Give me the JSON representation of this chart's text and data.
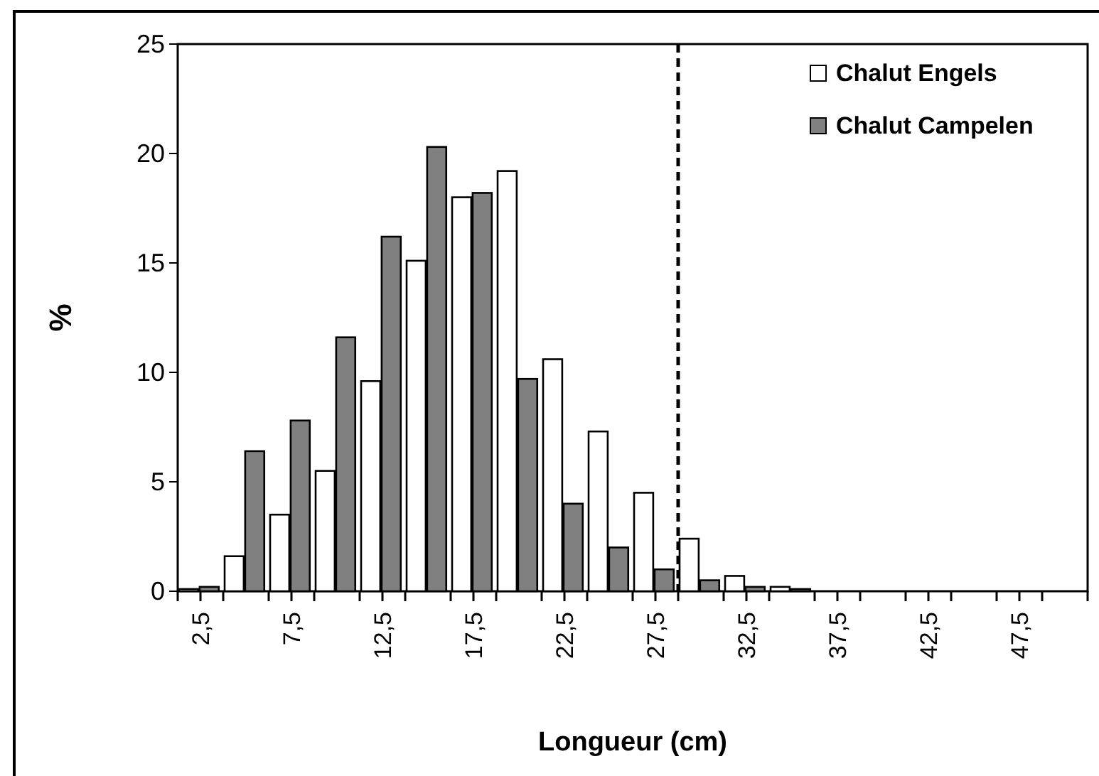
{
  "chart_data": {
    "type": "bar",
    "xlabel": "Longueur (cm)",
    "ylabel": "%",
    "x": [
      2.5,
      5,
      7.5,
      10,
      12.5,
      15,
      17.5,
      20,
      22.5,
      25,
      27.5,
      30,
      32.5,
      35,
      37.5,
      40,
      42.5,
      45,
      47.5,
      50
    ],
    "xlim": [
      1.25,
      51.25
    ],
    "xticks": [
      {
        "value": 1.25,
        "label": null
      },
      {
        "value": 2.5,
        "label": "2,5"
      },
      {
        "value": 3.75,
        "label": null
      },
      {
        "value": 6.25,
        "label": null
      },
      {
        "value": 7.5,
        "label": "7,5"
      },
      {
        "value": 8.75,
        "label": null
      },
      {
        "value": 11.25,
        "label": null
      },
      {
        "value": 12.5,
        "label": "12,5"
      },
      {
        "value": 13.75,
        "label": null
      },
      {
        "value": 16.25,
        "label": null
      },
      {
        "value": 17.5,
        "label": "17,5"
      },
      {
        "value": 18.75,
        "label": null
      },
      {
        "value": 21.25,
        "label": null
      },
      {
        "value": 22.5,
        "label": "22,5"
      },
      {
        "value": 23.75,
        "label": null
      },
      {
        "value": 26.25,
        "label": null
      },
      {
        "value": 27.5,
        "label": "27,5"
      },
      {
        "value": 28.75,
        "label": null
      },
      {
        "value": 31.25,
        "label": null
      },
      {
        "value": 32.5,
        "label": "32,5"
      },
      {
        "value": 33.75,
        "label": null
      },
      {
        "value": 36.25,
        "label": null
      },
      {
        "value": 37.5,
        "label": "37,5"
      },
      {
        "value": 38.75,
        "label": null
      },
      {
        "value": 41.25,
        "label": null
      },
      {
        "value": 42.5,
        "label": "42,5"
      },
      {
        "value": 43.75,
        "label": null
      },
      {
        "value": 46.25,
        "label": null
      },
      {
        "value": 47.5,
        "label": "47,5"
      },
      {
        "value": 48.75,
        "label": null
      },
      {
        "value": 51.25,
        "label": null
      }
    ],
    "ylim": [
      0,
      25
    ],
    "yticks": [
      0,
      5,
      10,
      15,
      20,
      25
    ],
    "grid": false,
    "legend": "top right",
    "series": [
      {
        "name": "Chalut Engels",
        "color": "#ffffff",
        "values": [
          0.1,
          1.6,
          3.5,
          5.5,
          9.6,
          15.1,
          18.0,
          19.2,
          10.6,
          7.3,
          4.5,
          2.4,
          0.7,
          0.2,
          0,
          0,
          0,
          0,
          0,
          0
        ]
      },
      {
        "name": "Chalut Campelen",
        "color": "#808080",
        "values": [
          0.2,
          6.4,
          7.8,
          11.6,
          16.2,
          20.3,
          18.2,
          9.7,
          4.0,
          2.0,
          1.0,
          0.5,
          0.2,
          0.1,
          0,
          0,
          0,
          0,
          0,
          0
        ]
      }
    ],
    "ref_lines": [
      {
        "axis": "x",
        "value": 28.75,
        "line_style": "dashed",
        "color": "#000000"
      }
    ]
  }
}
